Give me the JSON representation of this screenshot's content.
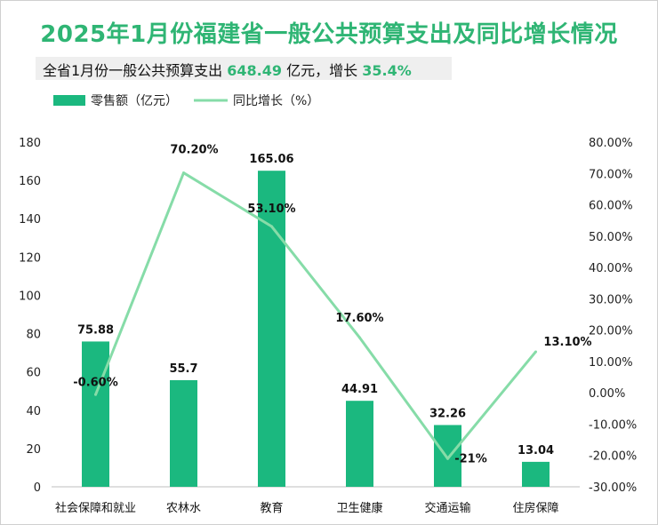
{
  "title": "2025年1月份福建省一般公共预算支出及同比增长情况",
  "subtitle": {
    "prefix": "全省1月份一般公共预算支出 ",
    "amount": "648.49",
    "middle": " 亿元，增长 ",
    "growth": "35.4%"
  },
  "colors": {
    "bar": "#1bb87f",
    "line": "#86dca8",
    "title": "#2fb574"
  },
  "chart_data": {
    "type": "bar",
    "categories": [
      "社会保障和就业",
      "农林水",
      "教育",
      "卫生健康",
      "交通运输",
      "住房保障"
    ],
    "series": [
      {
        "name": "零售额（亿元）",
        "type": "bar",
        "axis": "left",
        "values": [
          75.88,
          55.7,
          165.06,
          44.91,
          32.26,
          13.04
        ],
        "labels": [
          "75.88",
          "55.7",
          "165.06",
          "44.91",
          "32.26",
          "13.04"
        ]
      },
      {
        "name": "同比增长（%）",
        "type": "line",
        "axis": "right",
        "values": [
          -0.6,
          70.2,
          53.1,
          17.6,
          -21,
          13.1
        ],
        "labels": [
          "-0.60%",
          "70.20%",
          "53.10%",
          "17.60%",
          "-21%",
          "13.10%"
        ]
      }
    ],
    "left_axis": {
      "min": 0,
      "max": 180,
      "step": 20,
      "ticks": [
        "0",
        "20",
        "40",
        "60",
        "80",
        "100",
        "120",
        "140",
        "160",
        "180"
      ]
    },
    "right_axis": {
      "min": -30,
      "max": 80,
      "step": 10,
      "ticks": [
        "-30.00%",
        "-20.00%",
        "-10.00%",
        "0.00%",
        "10.00%",
        "20.00%",
        "30.00%",
        "40.00%",
        "50.00%",
        "60.00%",
        "70.00%",
        "80.00%"
      ]
    },
    "grid": false,
    "legend_position": "top-left"
  }
}
